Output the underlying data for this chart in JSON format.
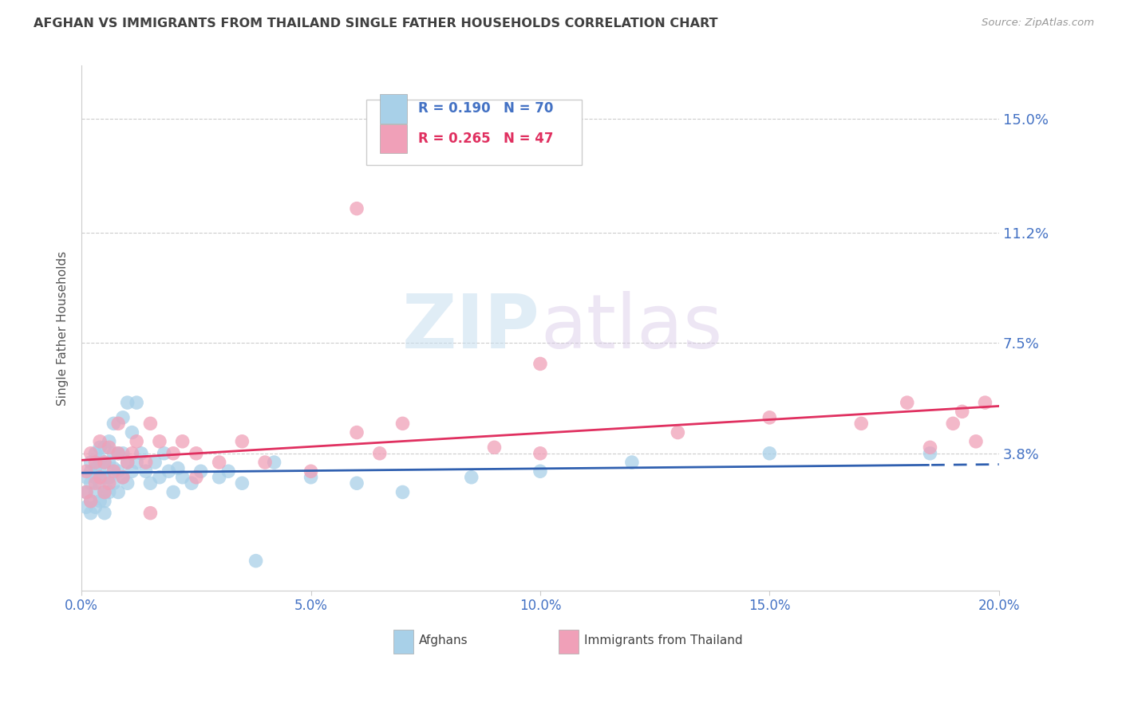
{
  "title": "AFGHAN VS IMMIGRANTS FROM THAILAND SINGLE FATHER HOUSEHOLDS CORRELATION CHART",
  "source": "Source: ZipAtlas.com",
  "ylabel": "Single Father Households",
  "ytick_labels": [
    "15.0%",
    "11.2%",
    "7.5%",
    "3.8%"
  ],
  "ytick_values": [
    0.15,
    0.112,
    0.075,
    0.038
  ],
  "xmin": 0.0,
  "xmax": 0.2,
  "ymin": -0.008,
  "ymax": 0.168,
  "legend_r1": "R = 0.190",
  "legend_n1": "N = 70",
  "legend_r2": "R = 0.265",
  "legend_n2": "N = 47",
  "blue_color": "#a8d0e8",
  "pink_color": "#f0a0b8",
  "line_blue": "#3060b0",
  "line_pink": "#e03060",
  "axis_label_color": "#4472C4",
  "title_color": "#404040",
  "watermark_zip": "ZIP",
  "watermark_atlas": "atlas",
  "afghans_x": [
    0.001,
    0.001,
    0.001,
    0.002,
    0.002,
    0.002,
    0.002,
    0.002,
    0.003,
    0.003,
    0.003,
    0.003,
    0.003,
    0.004,
    0.004,
    0.004,
    0.004,
    0.004,
    0.005,
    0.005,
    0.005,
    0.005,
    0.005,
    0.005,
    0.006,
    0.006,
    0.006,
    0.006,
    0.007,
    0.007,
    0.007,
    0.007,
    0.008,
    0.008,
    0.008,
    0.009,
    0.009,
    0.009,
    0.01,
    0.01,
    0.01,
    0.011,
    0.011,
    0.012,
    0.012,
    0.013,
    0.014,
    0.015,
    0.016,
    0.017,
    0.018,
    0.019,
    0.02,
    0.021,
    0.022,
    0.024,
    0.026,
    0.03,
    0.032,
    0.035,
    0.038,
    0.042,
    0.05,
    0.06,
    0.07,
    0.085,
    0.1,
    0.12,
    0.15,
    0.185
  ],
  "afghans_y": [
    0.02,
    0.025,
    0.03,
    0.018,
    0.022,
    0.028,
    0.032,
    0.035,
    0.02,
    0.025,
    0.03,
    0.033,
    0.038,
    0.022,
    0.028,
    0.032,
    0.036,
    0.04,
    0.018,
    0.022,
    0.025,
    0.03,
    0.035,
    0.04,
    0.025,
    0.03,
    0.035,
    0.042,
    0.028,
    0.033,
    0.038,
    0.048,
    0.025,
    0.032,
    0.038,
    0.03,
    0.038,
    0.05,
    0.028,
    0.035,
    0.055,
    0.032,
    0.045,
    0.035,
    0.055,
    0.038,
    0.032,
    0.028,
    0.035,
    0.03,
    0.038,
    0.032,
    0.025,
    0.033,
    0.03,
    0.028,
    0.032,
    0.03,
    0.032,
    0.028,
    0.002,
    0.035,
    0.03,
    0.028,
    0.025,
    0.03,
    0.032,
    0.035,
    0.038,
    0.038
  ],
  "afghans_y_fixed": [
    0.02,
    0.025,
    0.03,
    0.018,
    0.022,
    0.028,
    0.032,
    0.035,
    0.02,
    0.025,
    0.03,
    0.033,
    0.038,
    0.022,
    0.028,
    0.032,
    0.036,
    0.04,
    0.018,
    0.022,
    0.025,
    0.03,
    0.035,
    0.04,
    0.025,
    0.03,
    0.035,
    0.042,
    0.028,
    0.033,
    0.038,
    0.048,
    0.025,
    0.032,
    0.038,
    0.03,
    0.038,
    0.05,
    0.028,
    0.035,
    0.055,
    0.032,
    0.045,
    0.035,
    0.055,
    0.038,
    0.032,
    0.028,
    0.035,
    0.03,
    0.038,
    0.032,
    0.025,
    0.033,
    0.03,
    0.028,
    0.032,
    0.03,
    0.032,
    0.028,
    0.002,
    0.035,
    0.03,
    0.028,
    0.025,
    0.03,
    0.032,
    0.035,
    0.038,
    0.038
  ],
  "thailand_x": [
    0.001,
    0.001,
    0.002,
    0.002,
    0.003,
    0.003,
    0.004,
    0.004,
    0.005,
    0.005,
    0.006,
    0.006,
    0.007,
    0.008,
    0.008,
    0.009,
    0.01,
    0.011,
    0.012,
    0.014,
    0.015,
    0.017,
    0.02,
    0.022,
    0.025,
    0.03,
    0.035,
    0.04,
    0.05,
    0.06,
    0.065,
    0.07,
    0.09,
    0.1,
    0.13,
    0.15,
    0.17,
    0.18,
    0.185,
    0.19,
    0.192,
    0.195,
    0.197,
    0.06,
    0.015,
    0.025,
    0.1
  ],
  "thailand_y": [
    0.025,
    0.032,
    0.022,
    0.038,
    0.028,
    0.035,
    0.03,
    0.042,
    0.025,
    0.035,
    0.028,
    0.04,
    0.032,
    0.038,
    0.048,
    0.03,
    0.035,
    0.038,
    0.042,
    0.035,
    0.048,
    0.042,
    0.038,
    0.042,
    0.038,
    0.035,
    0.042,
    0.035,
    0.032,
    0.045,
    0.038,
    0.048,
    0.04,
    0.038,
    0.045,
    0.05,
    0.048,
    0.055,
    0.04,
    0.048,
    0.052,
    0.042,
    0.055,
    0.12,
    0.018,
    0.03,
    0.068
  ],
  "xtick_positions": [
    0.0,
    0.05,
    0.1,
    0.15,
    0.2
  ],
  "xtick_labels": [
    "0.0%",
    "5.0%",
    "10.0%",
    "15.0%",
    "20.0%"
  ]
}
